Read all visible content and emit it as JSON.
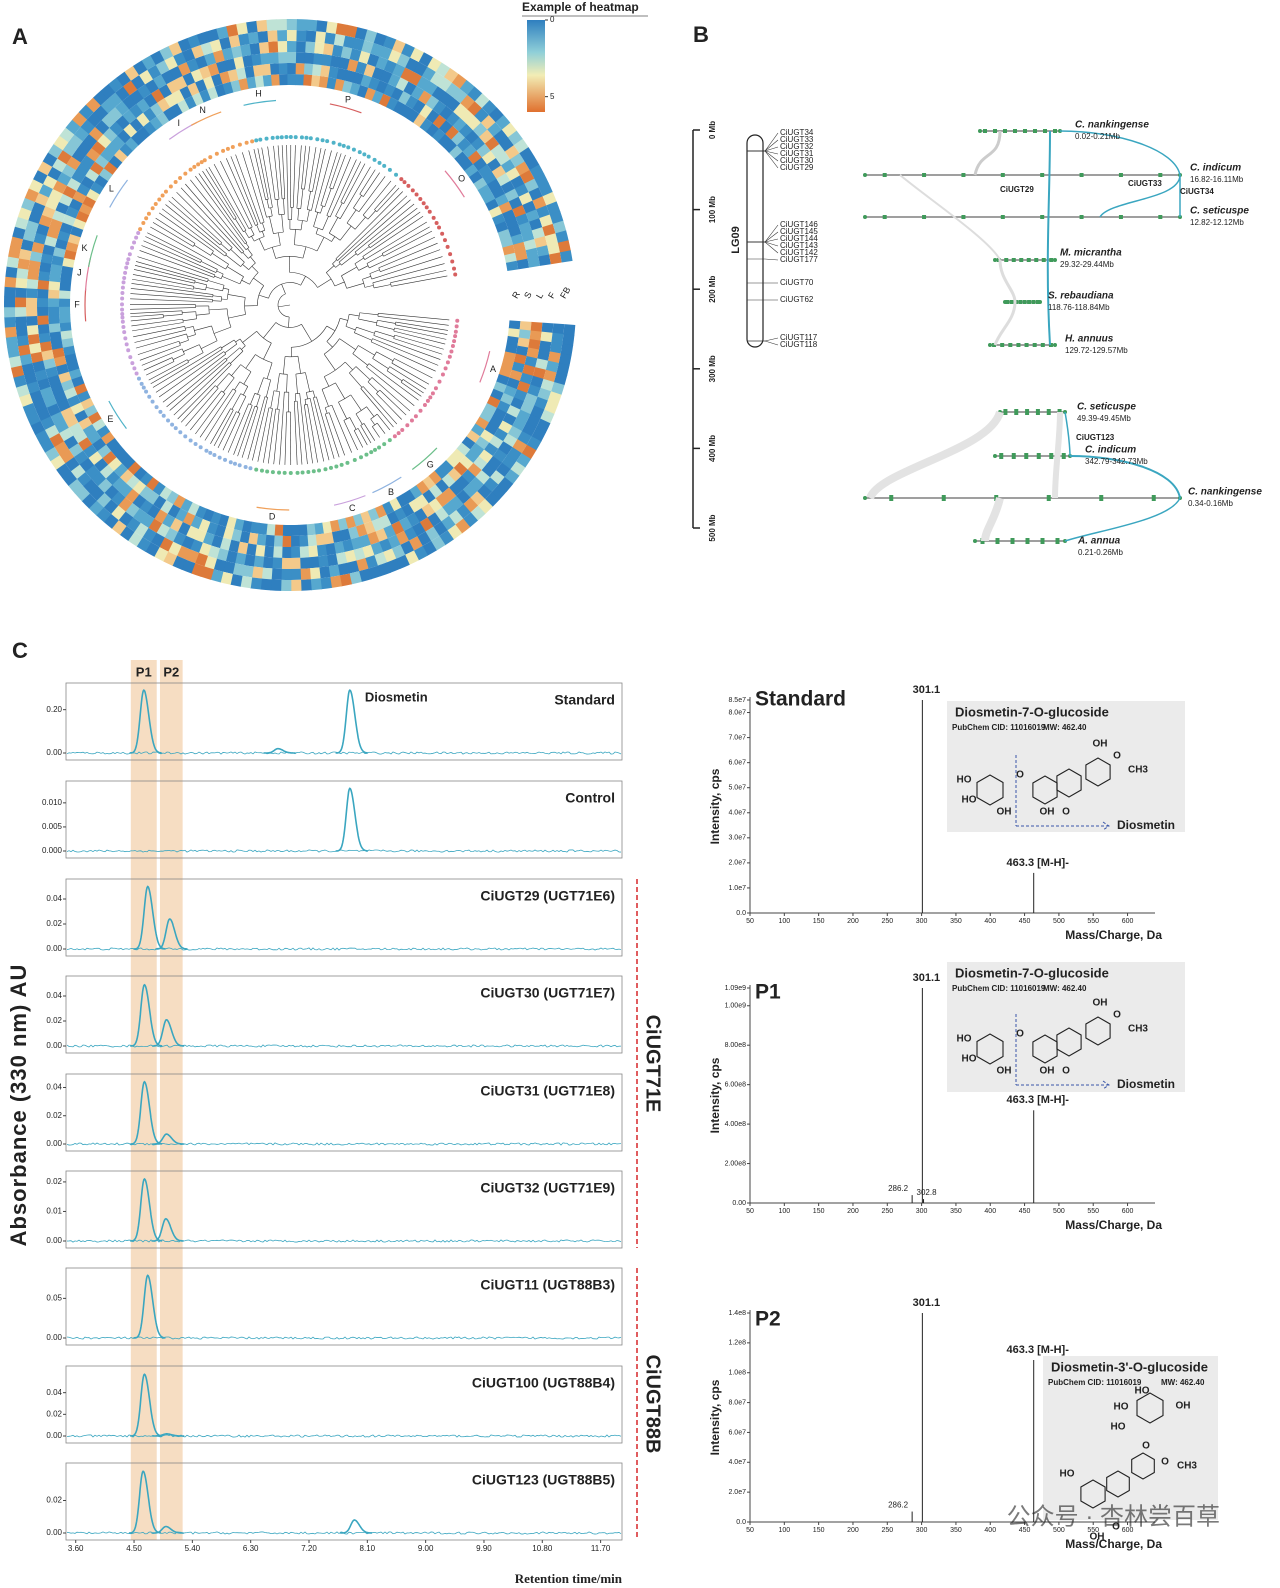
{
  "panel_a": {
    "label": "A",
    "legend_title": "Example of heatmap",
    "legend_range": [
      0,
      6
    ],
    "legend_ticks": [
      0,
      5
    ],
    "columns": [
      "R",
      "S",
      "L",
      "F",
      "FB"
    ],
    "clades": [
      "A",
      "G",
      "B",
      "C",
      "D",
      "E",
      "F",
      "J",
      "K",
      "L",
      "I",
      "N",
      "H",
      "P",
      "O"
    ]
  },
  "panel_b": {
    "label": "B",
    "chromosome": "LG09",
    "ylim": [
      0,
      500
    ],
    "yticks": [
      {
        "value": 0,
        "label": "0 Mb"
      },
      {
        "value": 100,
        "label": "100 Mb"
      },
      {
        "value": 200,
        "label": "200 Mb"
      },
      {
        "value": 300,
        "label": "300 Mb"
      },
      {
        "value": 400,
        "label": "400 Mb"
      },
      {
        "value": 500,
        "label": "500 Mb"
      }
    ],
    "genes": [
      {
        "name": "CiUGT34",
        "color": "#d62728"
      },
      {
        "name": "CiUGT33",
        "color": "#d62728"
      },
      {
        "name": "CiUGT32",
        "color": "#d62728"
      },
      {
        "name": "CiUGT31",
        "color": "#d62728"
      },
      {
        "name": "CiUGT30",
        "color": "#d62728"
      },
      {
        "name": "CiUGT29",
        "color": "#d62728"
      },
      {
        "name": "CiUGT146",
        "color": "#222222"
      },
      {
        "name": "CiUGT145",
        "color": "#222222"
      },
      {
        "name": "CiUGT144",
        "color": "#222222"
      },
      {
        "name": "CiUGT143",
        "color": "#222222"
      },
      {
        "name": "CiUGT142",
        "color": "#222222"
      },
      {
        "name": "CiUGT177",
        "color": "#222222"
      },
      {
        "name": "CiUGT70",
        "color": "#222222"
      },
      {
        "name": "CiUGT62",
        "color": "#222222"
      },
      {
        "name": "CiUGT117",
        "color": "#222222"
      },
      {
        "name": "CiUGT118",
        "color": "#222222"
      }
    ],
    "top_species": [
      {
        "name": "C. nankingense",
        "range": "0.02-0.21Mb",
        "color": "#2f4f9e"
      },
      {
        "name": "C. indicum",
        "range": "16.82-16.11Mb",
        "color": "#c0262d"
      },
      {
        "name": "C. seticuspe",
        "range": "12.82-12.12Mb",
        "color": "#2f4f9e"
      },
      {
        "name": "M. micrantha",
        "range": "29.32-29.44Mb",
        "color": "#2e8b3e"
      },
      {
        "name": "S. rebaudiana",
        "range": "118.76-118.84Mb",
        "color": "#2e8b3e"
      },
      {
        "name": "H. annuus",
        "range": "129.72-129.57Mb",
        "color": "#2e8b3e"
      }
    ],
    "top_gene_labels": [
      "CiUGT29",
      "CiUGT33",
      "CiUGT34"
    ],
    "bottom_species": [
      {
        "name": "C. seticuspe",
        "range": "49.39-49.45Mb",
        "color": "#2f4f9e"
      },
      {
        "name": "C. indicum",
        "range": "342.79-342.73Mb",
        "color": "#c0262d"
      },
      {
        "name": "C. nankingense",
        "range": "0.34-0.16Mb",
        "color": "#2f4f9e"
      },
      {
        "name": "A. annua",
        "range": "0.21-0.26Mb",
        "color": "#2f4f9e"
      }
    ],
    "bottom_gene_label": "CiUGT123"
  },
  "panel_c": {
    "label": "C",
    "y_axis_label": "Absorbance (330 nm) AU",
    "x_axis_label": "Retention time/min",
    "xlim": [
      3.45,
      12.03
    ],
    "xticks": [
      {
        "value": 3.6,
        "label": "3.60"
      },
      {
        "value": 4.5,
        "label": "4.50"
      },
      {
        "value": 5.4,
        "label": "5.40"
      },
      {
        "value": 6.3,
        "label": "6.30"
      },
      {
        "value": 7.2,
        "label": "7.20"
      },
      {
        "value": 8.1,
        "label": "8.10"
      },
      {
        "value": 9.0,
        "label": "9.00"
      },
      {
        "value": 9.9,
        "label": "9.90"
      },
      {
        "value": 10.8,
        "label": "10.80"
      },
      {
        "value": 11.7,
        "label": "11.70"
      }
    ],
    "bands": [
      {
        "label": "P1",
        "range": [
          4.45,
          4.85
        ]
      },
      {
        "label": "P2",
        "range": [
          4.9,
          5.25
        ]
      }
    ],
    "trace_color": "#3aa6c0",
    "band_color": "#f2cfa8",
    "traces": [
      {
        "name": "Standard",
        "annotation": "Diosmetin",
        "ylim": [
          0,
          0.3
        ],
        "yticks": [
          {
            "value": 0,
            "label": "0.00"
          },
          {
            "value": 0.2,
            "label": "0.20"
          }
        ],
        "peaks": [
          {
            "x": 4.65,
            "y": 0.29
          },
          {
            "x": 6.72,
            "y": 0.02
          },
          {
            "x": 7.83,
            "y": 0.29
          }
        ]
      },
      {
        "name": "Control",
        "ylim": [
          0,
          0.0135
        ],
        "yticks": [
          {
            "value": 0,
            "label": "0.000"
          },
          {
            "value": 0.005,
            "label": "0.005"
          },
          {
            "value": 0.01,
            "label": "0.010"
          }
        ],
        "peaks": [
          {
            "x": 7.83,
            "y": 0.013
          }
        ]
      },
      {
        "name": "CiUGT29 (UGT71E6)",
        "ylim": [
          0,
          0.052
        ],
        "yticks": [
          {
            "value": 0,
            "label": "0.00"
          },
          {
            "value": 0.02,
            "label": "0.02"
          },
          {
            "value": 0.04,
            "label": "0.04"
          }
        ],
        "peaks": [
          {
            "x": 4.71,
            "y": 0.05
          },
          {
            "x": 5.05,
            "y": 0.024
          }
        ]
      },
      {
        "name": "CiUGT30 (UGT71E7)",
        "ylim": [
          0,
          0.052
        ],
        "yticks": [
          {
            "value": 0,
            "label": "0.00"
          },
          {
            "value": 0.02,
            "label": "0.02"
          },
          {
            "value": 0.04,
            "label": "0.04"
          }
        ],
        "peaks": [
          {
            "x": 4.66,
            "y": 0.049
          },
          {
            "x": 5.0,
            "y": 0.021
          }
        ]
      },
      {
        "name": "CiUGT31 (UGT71E8)",
        "ylim": [
          0,
          0.046
        ],
        "yticks": [
          {
            "value": 0,
            "label": "0.00"
          },
          {
            "value": 0.02,
            "label": "0.02"
          },
          {
            "value": 0.04,
            "label": "0.04"
          }
        ],
        "peaks": [
          {
            "x": 4.66,
            "y": 0.044
          },
          {
            "x": 5.0,
            "y": 0.007
          }
        ]
      },
      {
        "name": "CiUGT32 (UGT71E9)",
        "ylim": [
          0,
          0.022
        ],
        "yticks": [
          {
            "value": 0,
            "label": "0.00"
          },
          {
            "value": 0.01,
            "label": "0.01"
          },
          {
            "value": 0.02,
            "label": "0.02"
          }
        ],
        "peaks": [
          {
            "x": 4.66,
            "y": 0.021
          },
          {
            "x": 4.99,
            "y": 0.0075
          }
        ]
      },
      {
        "name": "CiUGT11 (UGT88B3)",
        "ylim": [
          0,
          0.082
        ],
        "yticks": [
          {
            "value": 0,
            "label": "0.00"
          },
          {
            "value": 0.05,
            "label": "0.05"
          }
        ],
        "peaks": [
          {
            "x": 4.71,
            "y": 0.079
          }
        ]
      },
      {
        "name": "CiUGT100 (UGT88B4)",
        "ylim": [
          0,
          0.06
        ],
        "yticks": [
          {
            "value": 0,
            "label": "0.00"
          },
          {
            "value": 0.02,
            "label": "0.02"
          },
          {
            "value": 0.04,
            "label": "0.04"
          }
        ],
        "peaks": [
          {
            "x": 4.66,
            "y": 0.057
          },
          {
            "x": 5.0,
            "y": 0.002
          }
        ]
      },
      {
        "name": "CiUGT123 (UGT88B5)",
        "ylim": [
          0,
          0.04
        ],
        "yticks": [
          {
            "value": 0,
            "label": "0.00"
          },
          {
            "value": 0.02,
            "label": "0.02"
          }
        ],
        "peaks": [
          {
            "x": 4.64,
            "y": 0.038
          },
          {
            "x": 4.99,
            "y": 0.004
          },
          {
            "x": 7.9,
            "y": 0.008
          }
        ]
      }
    ],
    "groups": [
      "CiUGT71E",
      "CiUGT88B"
    ],
    "group_color": "#d62728",
    "spectra": [
      {
        "title": "Standard",
        "y_axis_label": "Intensity, cps",
        "x_axis_label": "Mass/Charge, Da",
        "xlim": [
          50,
          640
        ],
        "xticks": [
          50,
          100,
          150,
          200,
          250,
          300,
          350,
          400,
          450,
          500,
          550,
          600
        ],
        "ylim": [
          0,
          85000000
        ],
        "yticks": [
          {
            "value": 0,
            "label": "0.0"
          },
          {
            "value": 10000000,
            "label": "1.0e7"
          },
          {
            "value": 20000000,
            "label": "2.0e7"
          },
          {
            "value": 30000000,
            "label": "3.0e7"
          },
          {
            "value": 40000000,
            "label": "4.0e7"
          },
          {
            "value": 50000000,
            "label": "5.0e7"
          },
          {
            "value": 60000000,
            "label": "6.0e7"
          },
          {
            "value": 70000000,
            "label": "7.0e7"
          },
          {
            "value": 80000000,
            "label": "8.0e7"
          },
          {
            "value": 85000000,
            "label": "8.5e7"
          }
        ],
        "peaks": [
          {
            "mz": 301.1,
            "intensity": 85000000,
            "label": "301.1",
            "color": "#222222"
          },
          {
            "mz": 463.3,
            "intensity": 16000000,
            "label": "463.3 [M-H]-",
            "color": "#c0262d"
          }
        ],
        "compound": {
          "name": "Diosmetin-7-O-glucoside",
          "cid": "PubChem CID: 11016019",
          "mw": "MW: 462.40",
          "product": "Diosmetin",
          "atoms": [
            "OH",
            "O",
            "CH3",
            "HO",
            "O",
            "HO",
            "OH",
            "OH",
            "O"
          ]
        }
      },
      {
        "title": "P1",
        "y_axis_label": "Intensity, cps",
        "x_axis_label": "Mass/Charge, Da",
        "xlim": [
          50,
          640
        ],
        "xticks": [
          50,
          100,
          150,
          200,
          250,
          300,
          350,
          400,
          450,
          500,
          550,
          600
        ],
        "ylim": [
          0,
          1090000000
        ],
        "yticks": [
          {
            "value": 0,
            "label": "0.00"
          },
          {
            "value": 200000000,
            "label": "2.00e8"
          },
          {
            "value": 400000000,
            "label": "4.00e8"
          },
          {
            "value": 600000000,
            "label": "6.00e8"
          },
          {
            "value": 800000000,
            "label": "8.00e8"
          },
          {
            "value": 1000000000,
            "label": "1.00e9"
          },
          {
            "value": 1090000000,
            "label": "1.09e9"
          }
        ],
        "peaks": [
          {
            "mz": 286.2,
            "intensity": 40000000,
            "label": "286.2",
            "color": "#222222"
          },
          {
            "mz": 301.1,
            "intensity": 1090000000,
            "label": "301.1",
            "color": "#222222"
          },
          {
            "mz": 302.8,
            "intensity": 20000000,
            "label": "302.8",
            "color": "#222222"
          },
          {
            "mz": 463.3,
            "intensity": 470000000,
            "label": "463.3 [M-H]-",
            "color": "#c0262d"
          }
        ],
        "compound": {
          "name": "Diosmetin-7-O-glucoside",
          "cid": "PubChem CID: 11016019",
          "mw": "MW: 462.40",
          "product": "Diosmetin",
          "atoms": [
            "OH",
            "O",
            "CH3",
            "HO",
            "O",
            "HO",
            "OH",
            "OH",
            "O"
          ]
        }
      },
      {
        "title": "P2",
        "y_axis_label": "Intensity, cps",
        "x_axis_label": "Mass/Charge, Da",
        "xlim": [
          50,
          640
        ],
        "xticks": [
          50,
          100,
          150,
          200,
          250,
          300,
          350,
          400,
          450,
          500,
          550,
          600
        ],
        "ylim": [
          0,
          140000000
        ],
        "yticks": [
          {
            "value": 0,
            "label": "0.0"
          },
          {
            "value": 20000000,
            "label": "2.0e7"
          },
          {
            "value": 40000000,
            "label": "4.0e7"
          },
          {
            "value": 60000000,
            "label": "6.0e7"
          },
          {
            "value": 80000000,
            "label": "8.0e7"
          },
          {
            "value": 100000000,
            "label": "1.0e8"
          },
          {
            "value": 120000000,
            "label": "1.2e8"
          },
          {
            "value": 140000000,
            "label": "1.4e8"
          }
        ],
        "peaks": [
          {
            "mz": 286.2,
            "intensity": 7000000,
            "label": "286.2",
            "color": "#222222"
          },
          {
            "mz": 301.1,
            "intensity": 140000000,
            "label": "301.1",
            "color": "#222222"
          },
          {
            "mz": 463.3,
            "intensity": 108500000,
            "label": "463.3 [M-H]-",
            "color": "#c0262d"
          }
        ],
        "compound": {
          "name": "Diosmetin-3'-O-glucoside",
          "cid": "PubChem CID: 11016019",
          "mw": "MW: 462.40",
          "atoms": [
            "HO",
            "OH",
            "HO",
            "HO",
            "O",
            "O",
            "CH3",
            "HO",
            "OH",
            "O"
          ]
        }
      }
    ]
  },
  "watermark": "公众号 · 杏林尝百草"
}
